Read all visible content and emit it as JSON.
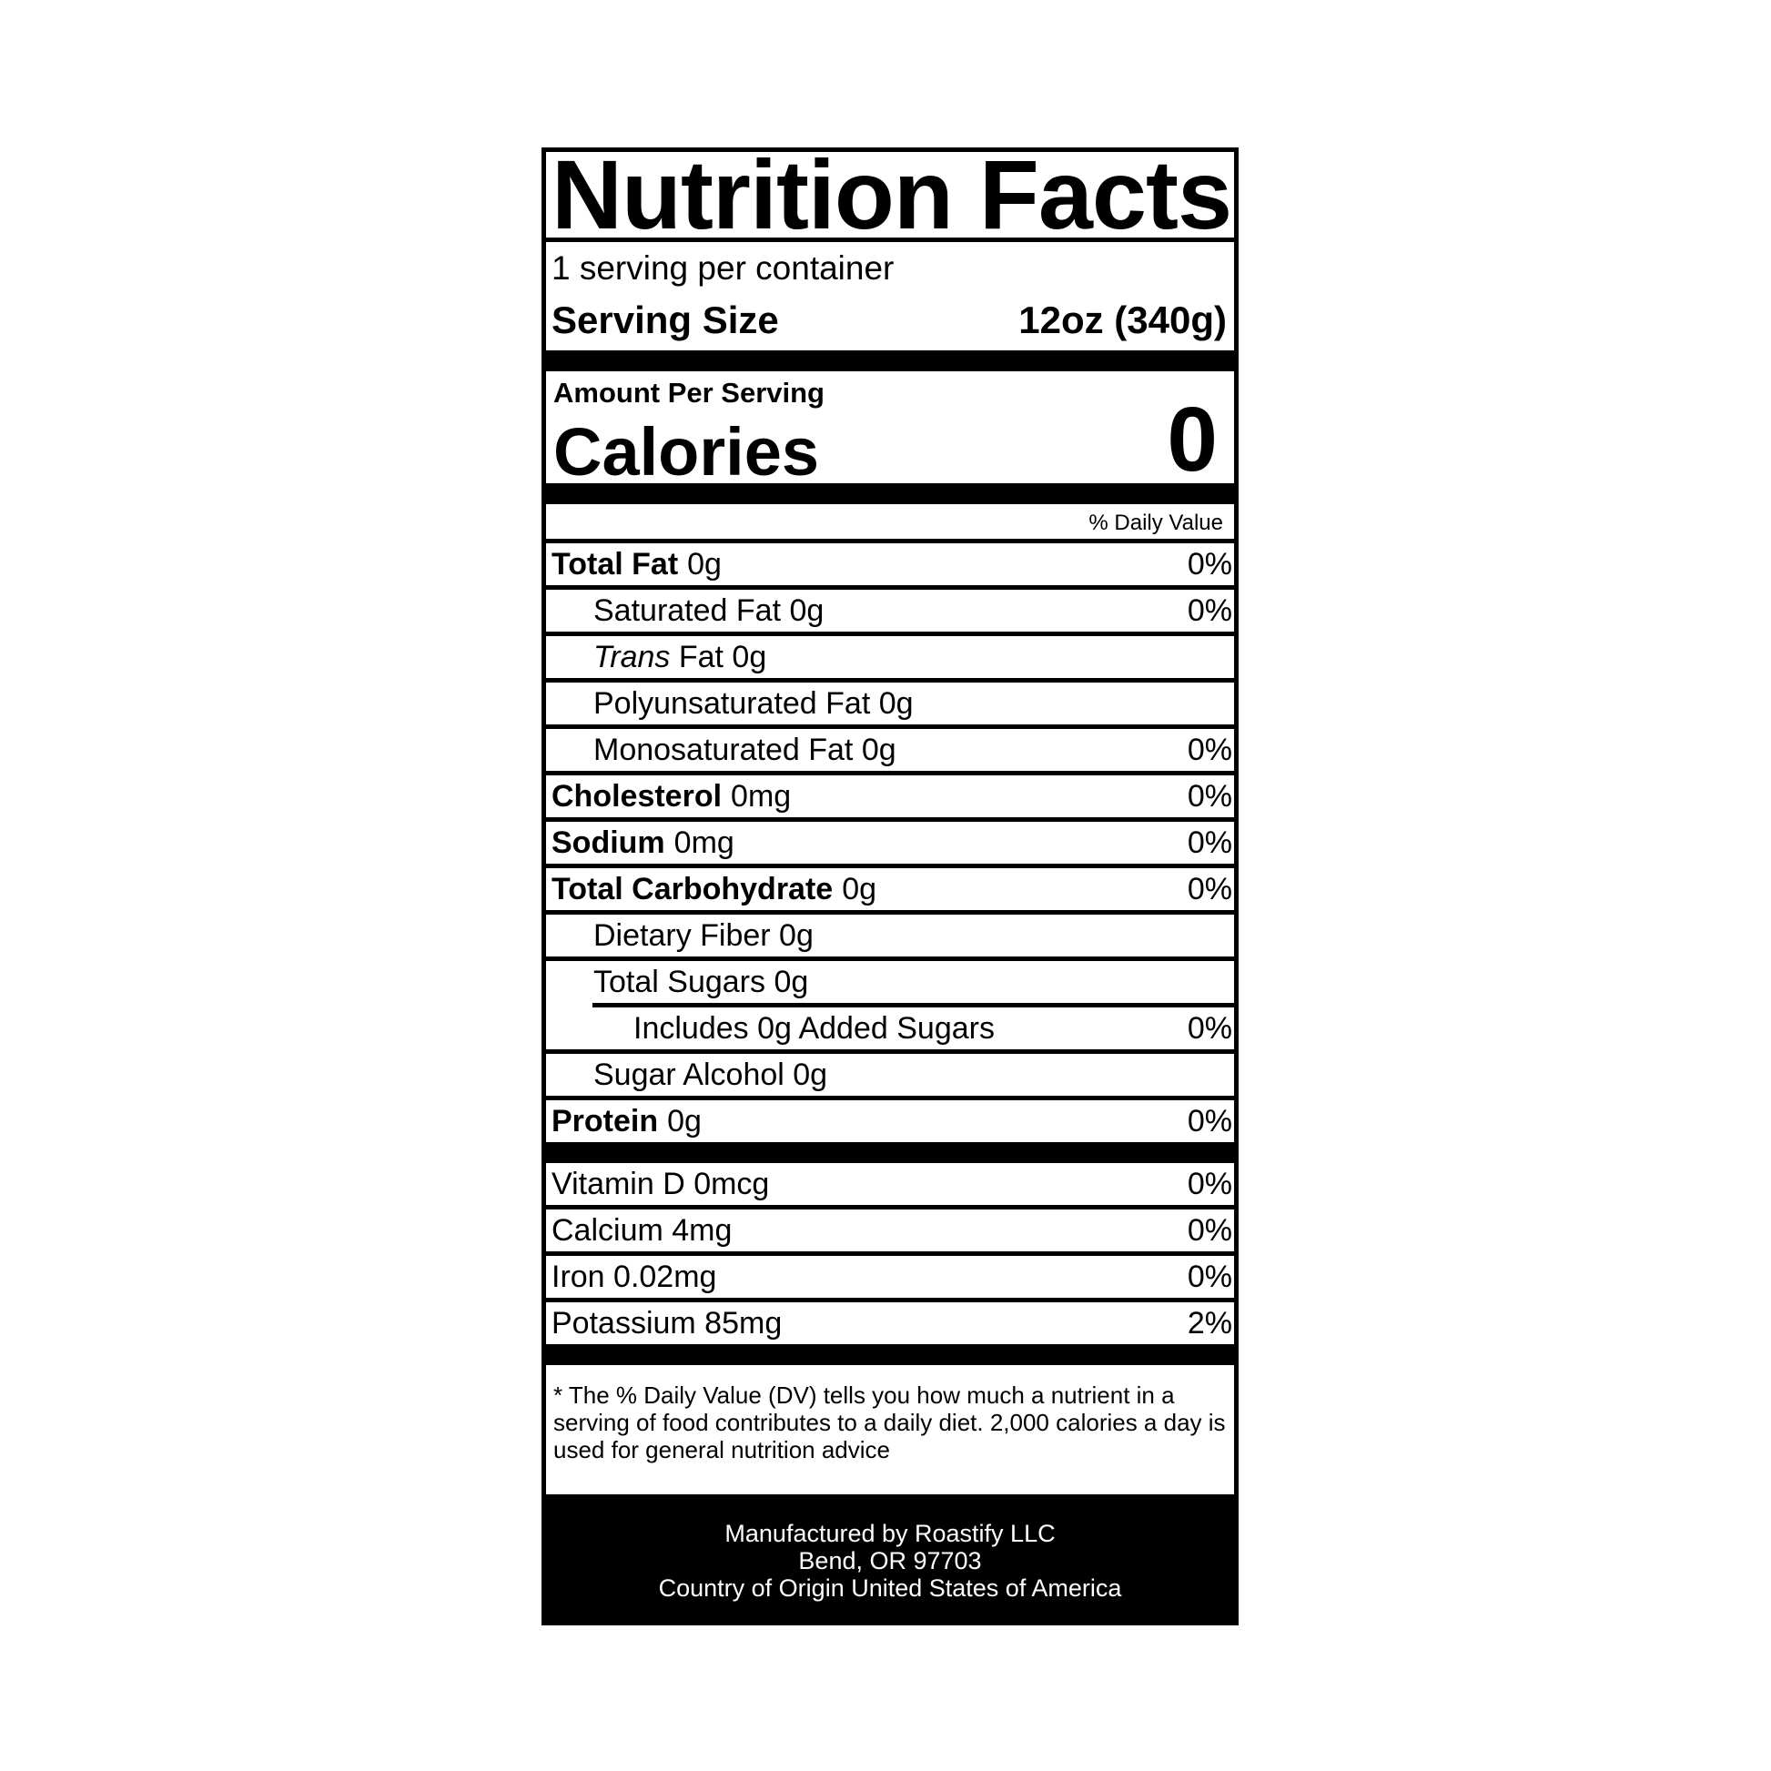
{
  "title": "Nutrition Facts",
  "servings_per_container": "1 serving per container",
  "serving_size": {
    "label": "Serving Size",
    "value": "12oz (340g)"
  },
  "amount_per_serving": "Amount Per Serving",
  "calories": {
    "label": "Calories",
    "value": "0"
  },
  "daily_value_header": "% Daily Value",
  "nutrients": [
    {
      "name": "Total Fat",
      "amount": "0g",
      "dv": "0%"
    },
    {
      "name": "Saturated Fat 0g",
      "dv": "0%"
    },
    {
      "name_italic": "Trans",
      "name": "Fat 0g",
      "dv": ""
    },
    {
      "name": "Polyunsaturated Fat 0g",
      "dv": ""
    },
    {
      "name": "Monosaturated Fat 0g",
      "dv": "0%"
    },
    {
      "name": "Cholesterol",
      "amount": "0mg",
      "dv": "0%"
    },
    {
      "name": "Sodium",
      "amount": "0mg",
      "dv": "0%"
    },
    {
      "name": "Total Carbohydrate",
      "amount": "0g",
      "dv": "0%"
    },
    {
      "name": "Dietary Fiber 0g",
      "dv": ""
    },
    {
      "name": "Total Sugars 0g",
      "dv": ""
    },
    {
      "name": "Includes 0g Added Sugars",
      "dv": "0%"
    },
    {
      "name": "Sugar Alcohol 0g",
      "dv": ""
    },
    {
      "name": "Protein",
      "amount": "0g",
      "dv": "0%"
    }
  ],
  "vitamins": [
    {
      "name": "Vitamin D 0mcg",
      "dv": "0%"
    },
    {
      "name": "Calcium 4mg",
      "dv": "0%"
    },
    {
      "name": "Iron 0.02mg",
      "dv": "0%"
    },
    {
      "name": "Potassium 85mg",
      "dv": "2%"
    }
  ],
  "footnote": "* The % Daily Value (DV) tells you how much a nutrient in a serving of food contributes to a daily diet. 2,000 calories a day is used for general nutrition advice",
  "manufacturer": {
    "line1": "Manufactured by Roastify LLC",
    "line2": "Bend, OR 97703",
    "line3": "Country of Origin United States of America"
  }
}
